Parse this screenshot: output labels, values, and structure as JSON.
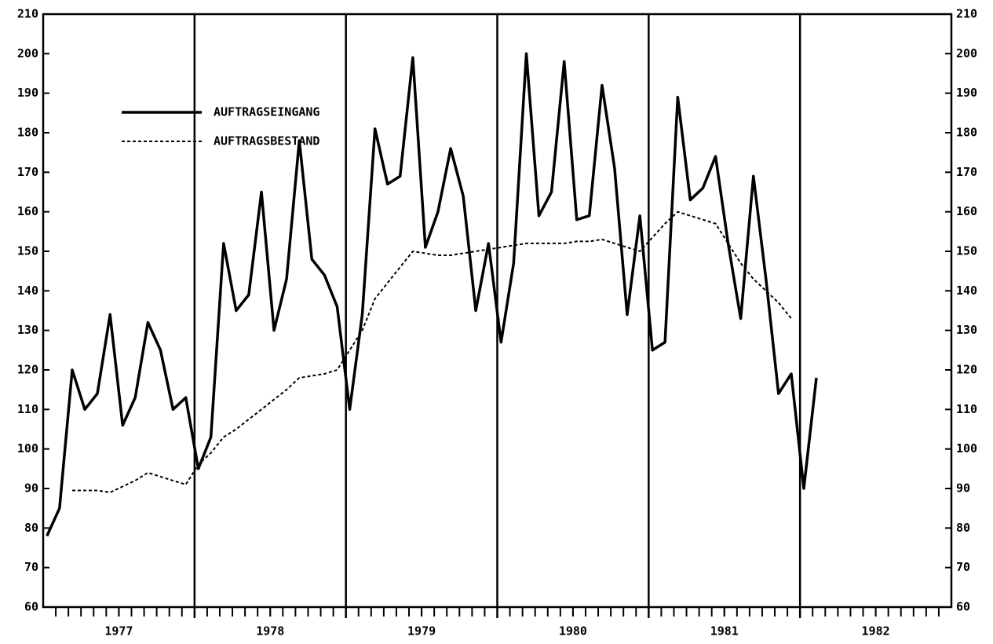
{
  "chart_data": {
    "type": "line",
    "x": [
      1977.025,
      1977.108,
      1977.192,
      1977.275,
      1977.358,
      1977.442,
      1977.525,
      1977.608,
      1977.692,
      1977.775,
      1977.858,
      1977.942,
      1978.025,
      1978.108,
      1978.192,
      1978.275,
      1978.358,
      1978.442,
      1978.525,
      1978.608,
      1978.692,
      1978.775,
      1978.858,
      1978.942,
      1979.025,
      1979.108,
      1979.192,
      1979.275,
      1979.358,
      1979.442,
      1979.525,
      1979.608,
      1979.692,
      1979.775,
      1979.858,
      1979.942,
      1980.025,
      1980.108,
      1980.192,
      1980.275,
      1980.358,
      1980.442,
      1980.525,
      1980.608,
      1980.692,
      1980.775,
      1980.858,
      1980.942,
      1981.025,
      1981.108,
      1981.192,
      1981.275,
      1981.358,
      1981.442,
      1981.525,
      1981.608,
      1981.692,
      1981.775,
      1981.858,
      1981.942,
      1982.025,
      1982.108
    ],
    "series": [
      {
        "name": "AUFTRAGSEINGANG",
        "color": "#000000",
        "dash": false,
        "values": [
          78,
          85,
          120,
          110,
          114,
          134,
          106,
          113,
          132,
          125,
          110,
          113,
          95,
          103,
          152,
          135,
          139,
          165,
          130,
          143,
          178,
          148,
          144,
          136,
          110,
          134,
          181,
          167,
          169,
          199,
          151,
          160,
          176,
          164,
          135,
          152,
          127,
          147,
          200,
          159,
          165,
          198,
          158,
          159,
          192,
          171,
          134,
          159,
          125,
          127,
          189,
          163,
          166,
          174,
          152,
          133,
          169,
          143,
          114,
          119,
          90,
          118
        ]
      },
      {
        "name": "AUFTRAGSBESTAND",
        "color": "#000000",
        "dash": true,
        "values": [
          null,
          null,
          89.5,
          89.5,
          89.5,
          89,
          90.5,
          92,
          94,
          93,
          92,
          91,
          96,
          99,
          103,
          105,
          107.5,
          110,
          112.5,
          115,
          118,
          118.5,
          119,
          120,
          125,
          130,
          138,
          142,
          146,
          150,
          149.5,
          149,
          149,
          149.5,
          150,
          150.5,
          151,
          151.5,
          152,
          152,
          152,
          152,
          152.5,
          152.5,
          153,
          152,
          151,
          150,
          153.5,
          157,
          160,
          159,
          158,
          157,
          152,
          147,
          143,
          140,
          137,
          133,
          null,
          null
        ]
      }
    ],
    "xlim": [
      1977,
      1983
    ],
    "xticks": [
      {
        "value": 1977.5,
        "label": "1977"
      },
      {
        "value": 1978.5,
        "label": "1978"
      },
      {
        "value": 1979.5,
        "label": "1979"
      },
      {
        "value": 1980.5,
        "label": "1980"
      },
      {
        "value": 1981.5,
        "label": "1981"
      },
      {
        "value": 1982.5,
        "label": "1982"
      }
    ],
    "ylim": [
      60,
      210
    ],
    "yticks": [
      60,
      70,
      80,
      90,
      100,
      110,
      120,
      130,
      140,
      150,
      160,
      170,
      180,
      190,
      200,
      210
    ],
    "y2lim": [
      60,
      210
    ],
    "y2ticks": [
      60,
      70,
      80,
      90,
      100,
      110,
      120,
      130,
      140,
      150,
      160,
      170,
      180,
      190,
      200,
      210
    ],
    "legend": "upper left"
  }
}
